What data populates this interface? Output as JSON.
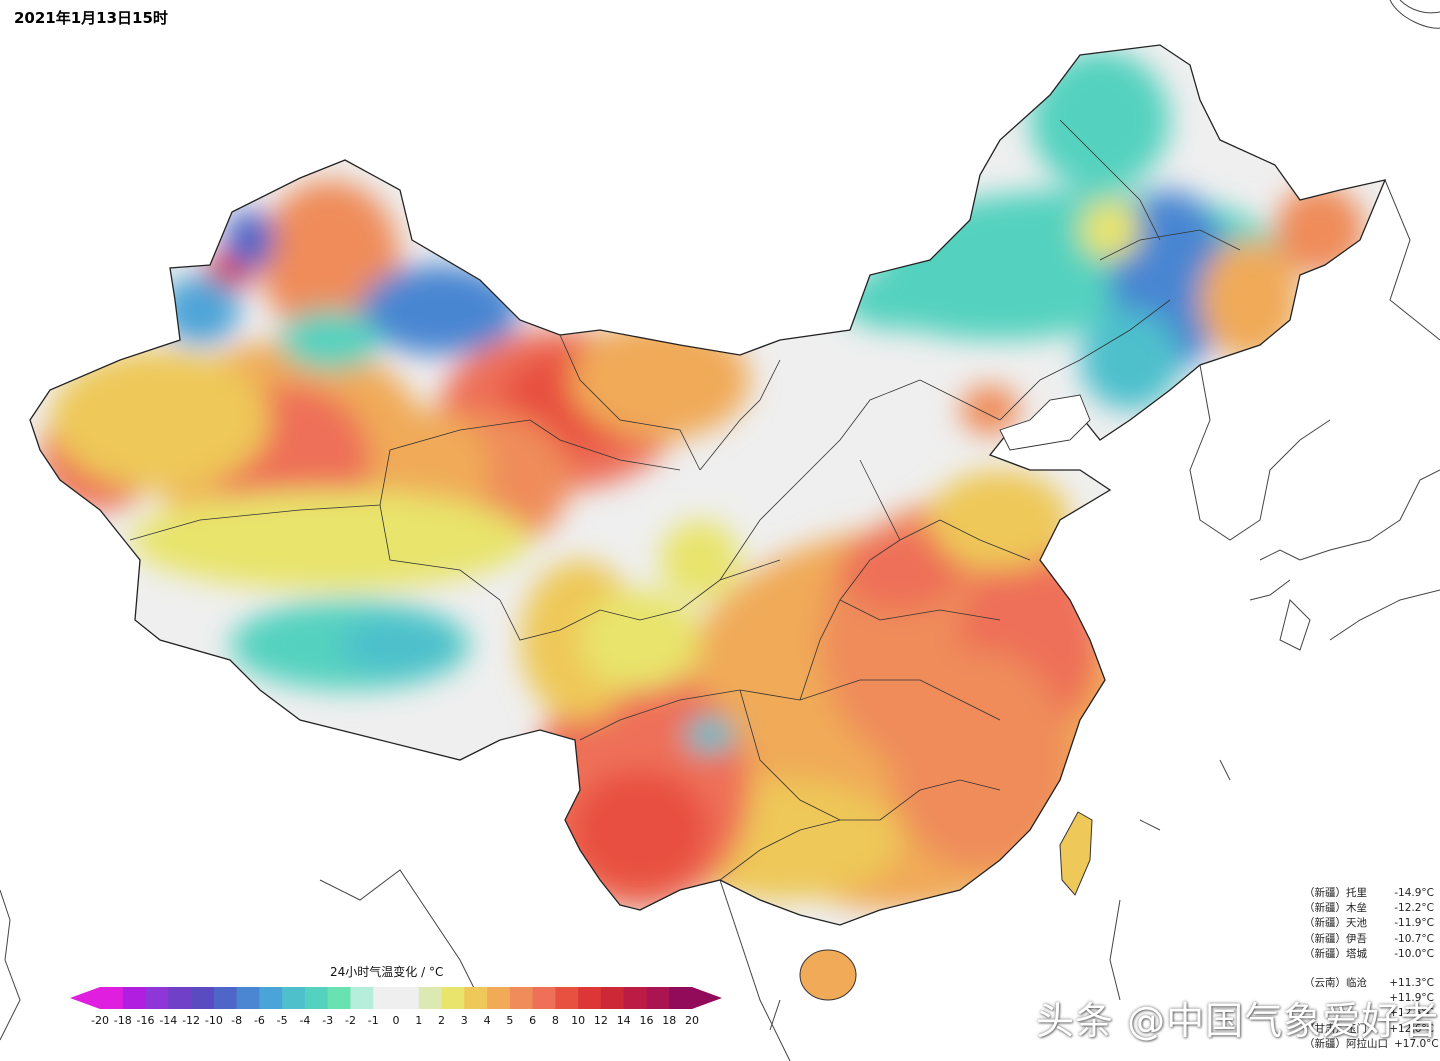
{
  "timestamp": "2021年1月13日15时",
  "legend": {
    "title": "24小时气温变化 / °C",
    "labels": [
      "-20",
      "-18",
      "-16",
      "-14",
      "-12",
      "-10",
      "-8",
      "-6",
      "-5",
      "-4",
      "-3",
      "-2",
      "-1",
      "0",
      "1",
      "2",
      "3",
      "4",
      "5",
      "6",
      "8",
      "10",
      "12",
      "14",
      "16",
      "18",
      "20"
    ],
    "colors": [
      "#e01ee0",
      "#b21ee0",
      "#8e36d8",
      "#7040c8",
      "#5a4cc0",
      "#4e66c8",
      "#4a86d2",
      "#4aa4d8",
      "#4ec0cc",
      "#55d2bf",
      "#68e2b0",
      "#b6eedb",
      "#efefef",
      "#efefef",
      "#dde9b2",
      "#e8e46c",
      "#eec858",
      "#f0aa58",
      "#ef8c5a",
      "#ee7058",
      "#e85040",
      "#dc3636",
      "#cc2836",
      "#bc1c44",
      "#aa1450",
      "#920a5a"
    ]
  },
  "stations_cold": [
    {
      "region": "（新疆）",
      "name": "托里",
      "value": "-14.9°C"
    },
    {
      "region": "（新疆）",
      "name": "木垒",
      "value": "-12.2°C"
    },
    {
      "region": "（新疆）",
      "name": "天池",
      "value": "-11.9°C"
    },
    {
      "region": "（新疆）",
      "name": "伊吾",
      "value": "-10.7°C"
    },
    {
      "region": "（新疆）",
      "name": "塔城",
      "value": "-10.0°C"
    }
  ],
  "stations_warm": [
    {
      "region": "（云南）",
      "name": "临沧",
      "value": "+11.3°C"
    },
    {
      "region": "",
      "name": "",
      "value": "+11.9°C"
    },
    {
      "region": "",
      "name": "",
      "value": "+12.5°C"
    },
    {
      "region": "（甘肃）",
      "name": "玉门",
      "value": "+12.6°C"
    },
    {
      "region": "（新疆）",
      "name": "阿拉山口",
      "value": "+17.0°C"
    }
  ],
  "watermark": "头条 @中国气象爱好者",
  "colors": {
    "land": "#efefef",
    "border": "#333333",
    "ocean": "#ffffff"
  }
}
